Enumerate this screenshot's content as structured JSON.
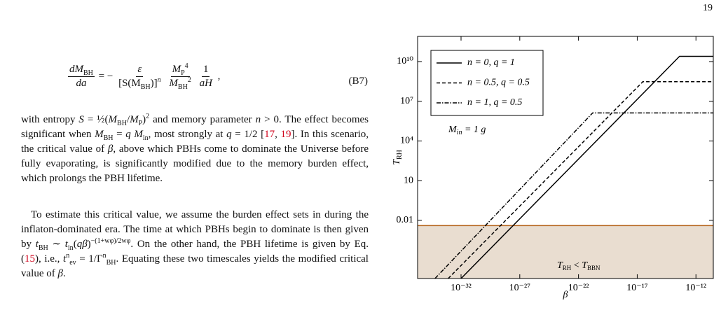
{
  "page_number": "19",
  "equation": {
    "lhs": {
      "num": [
        "dM",
        "BH"
      ],
      "den": "da"
    },
    "eq": "= −",
    "f1": {
      "num": "ε",
      "den": [
        "[S(M",
        "BH",
        ")]",
        "n"
      ]
    },
    "f2": {
      "num": [
        "M",
        "P",
        "4"
      ],
      "den": [
        "M",
        "BH",
        "2"
      ]
    },
    "f3": {
      "num": "1",
      "den": "aH"
    },
    "tail": ",",
    "number": "(B7)"
  },
  "paragraphs": [
    [
      {
        "t": "with entropy "
      },
      {
        "t": "S",
        "s": "it"
      },
      {
        "t": " = ½("
      },
      {
        "t": "M",
        "s": "it"
      },
      {
        "t": "BH",
        "s": "sub"
      },
      {
        "t": "/"
      },
      {
        "t": "M",
        "s": "it"
      },
      {
        "t": "P",
        "s": "sub"
      },
      {
        "t": ")"
      },
      {
        "t": "2",
        "s": "sup"
      },
      {
        "t": " and memory parameter "
      },
      {
        "t": "n",
        "s": "it"
      },
      {
        "t": " > 0. The effect becomes significant when "
      },
      {
        "t": "M",
        "s": "it"
      },
      {
        "t": "BH",
        "s": "sub"
      },
      {
        "t": " = "
      },
      {
        "t": "q M",
        "s": "it"
      },
      {
        "t": "in",
        "s": "sub"
      },
      {
        "t": ", most strongly at "
      },
      {
        "t": "q",
        "s": "it"
      },
      {
        "t": " = 1/2 ["
      },
      {
        "t": "17",
        "s": "link"
      },
      {
        "t": ", "
      },
      {
        "t": "19",
        "s": "link"
      },
      {
        "t": "]. In this scenario, the critical value of "
      },
      {
        "t": "β",
        "s": "it"
      },
      {
        "t": ", above which PBHs come to dominate the Universe before fully evaporating, is significantly modified due to the memory burden effect, which prolongs the PBH lifetime."
      }
    ],
    [
      {
        "t": "To estimate this critical value, we assume the burden effect sets in during the inflaton-dominated era. The time at which PBHs begin to dominate is then given by "
      },
      {
        "t": "t",
        "s": "it"
      },
      {
        "t": "BH",
        "s": "sub"
      },
      {
        "t": " ∼ "
      },
      {
        "t": "t",
        "s": "it"
      },
      {
        "t": "in",
        "s": "sub"
      },
      {
        "t": "("
      },
      {
        "t": "qβ",
        "s": "it"
      },
      {
        "t": ")"
      },
      {
        "t": "−(1+wφ)/2wφ",
        "s": "sup"
      },
      {
        "t": ". On the other hand, the PBH lifetime is given by Eq. ("
      },
      {
        "t": "15",
        "s": "link"
      },
      {
        "t": "), i.e., "
      },
      {
        "t": "t",
        "s": "it"
      },
      {
        "t": "n",
        "s": "sup"
      },
      {
        "t": "ev",
        "s": "sub"
      },
      {
        "t": " = 1/Γ"
      },
      {
        "t": "n",
        "s": "sup"
      },
      {
        "t": "BH",
        "s": "sub"
      },
      {
        "t": ". Equating these two timescales yields the modified critical value of "
      },
      {
        "t": "β",
        "s": "it"
      },
      {
        "t": "."
      }
    ]
  ],
  "chart_data": {
    "type": "line",
    "x_label": "β",
    "y_label": {
      "main": "T",
      "sub": "RH"
    },
    "xlog": true,
    "ylog": true,
    "xlim": [
      2e-36,
      3e-11
    ],
    "ylim": [
      4e-07,
      800000000000.0
    ],
    "xticks": [
      {
        "value": 1e-32,
        "label": "10⁻³²"
      },
      {
        "value": 1e-27,
        "label": "10⁻²⁷"
      },
      {
        "value": 1e-22,
        "label": "10⁻²²"
      },
      {
        "value": 1e-17,
        "label": "10⁻¹⁷"
      },
      {
        "value": 1e-12,
        "label": "10⁻¹²"
      }
    ],
    "yticks": [
      0.01,
      10,
      {
        "value": 10000,
        "label": "10⁴"
      },
      {
        "value": 10000000,
        "label": "10⁷"
      },
      {
        "value": 10000000000,
        "label": "10¹⁰"
      }
    ],
    "series": [
      {
        "name": "n = 0, q = 1",
        "color": "#000000",
        "dash": "solid",
        "x": [
          1e-32,
          4e-14,
          3e-11
        ],
        "values": [
          4e-07,
          25000000000.0,
          25000000000.0
        ]
      },
      {
        "name": "n = 0.5, q = 0.5",
        "color": "#000000",
        "dash": "dashed",
        "x": [
          8e-34,
          3e-17,
          3e-11
        ],
        "values": [
          4e-07,
          300000000.0,
          300000000.0
        ]
      },
      {
        "name": "n = 1, q = 0.5",
        "color": "#000000",
        "dash": "dashdot",
        "x": [
          6e-35,
          1.6e-21,
          3e-11
        ],
        "values": [
          4e-07,
          1300000.0,
          1300000.0
        ]
      }
    ],
    "bbn_limit": {
      "value": 0.004,
      "color": "#b5651d",
      "fill": "#e9ddd0",
      "label": {
        "main": "T",
        "sub": "RH",
        "mid": " < ",
        "main2": "T",
        "sub2": "BBN"
      }
    },
    "annotation": {
      "main": "M",
      "sub": "in",
      "rest": " = 1  g"
    },
    "legend": "upper left"
  }
}
